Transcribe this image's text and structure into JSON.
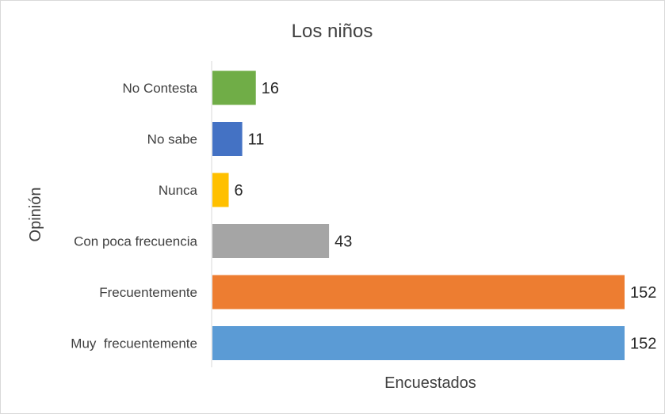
{
  "chart_data": {
    "type": "bar",
    "orientation": "horizontal",
    "title": "Los niños",
    "xlabel": "Encuestados",
    "ylabel": "Opinión",
    "categories": [
      "No Contesta",
      "No sabe",
      "Nunca",
      "Con poca frecuencia",
      "Frecuentemente",
      "Muy  frecuentemente"
    ],
    "values": [
      16,
      11,
      6,
      43,
      152,
      152
    ],
    "value_labels": [
      "16",
      "11",
      "6",
      "43",
      "152",
      "152"
    ],
    "colors": [
      "#70ad47",
      "#4472c4",
      "#ffc000",
      "#a5a5a5",
      "#ed7d31",
      "#5b9bd5"
    ],
    "xlim": [
      0,
      152
    ],
    "grid": false,
    "legend": "none"
  }
}
